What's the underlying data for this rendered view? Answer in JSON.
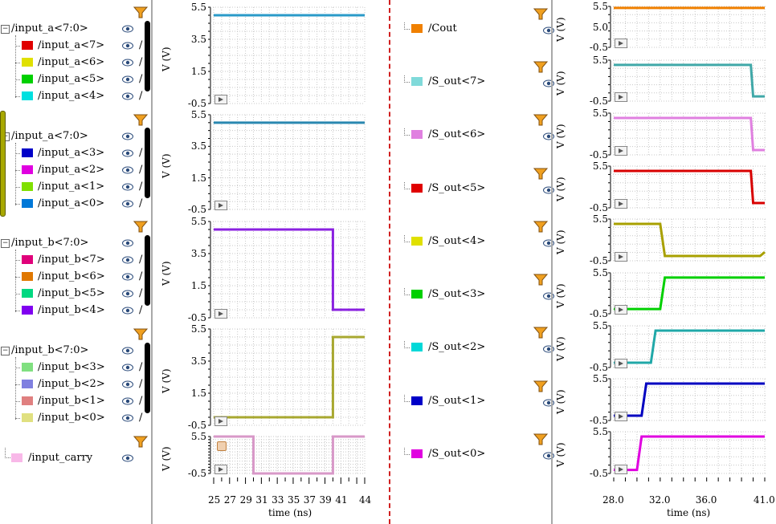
{
  "left_panel": {
    "groups": [
      {
        "bus": "/input_a<7:0>",
        "signals": [
          {
            "label": "/input_a<7>",
            "color": "#e00000"
          },
          {
            "label": "/input_a<6>",
            "color": "#e0e000"
          },
          {
            "label": "/input_a<5>",
            "color": "#00d000"
          },
          {
            "label": "/input_a<4>",
            "color": "#00e0e0"
          }
        ]
      },
      {
        "bus": "/input_a<7:0>",
        "signals": [
          {
            "label": "/input_a<3>",
            "color": "#0000c8"
          },
          {
            "label": "/input_a<2>",
            "color": "#e000e0"
          },
          {
            "label": "/input_a<1>",
            "color": "#80e000"
          },
          {
            "label": "/input_a<0>",
            "color": "#0078d8"
          }
        ]
      },
      {
        "bus": "/input_b<7:0>",
        "signals": [
          {
            "label": "/input_b<7>",
            "color": "#e0007a"
          },
          {
            "label": "/input_b<6>",
            "color": "#e07800"
          },
          {
            "label": "/input_b<5>",
            "color": "#00d880"
          },
          {
            "label": "/input_b<4>",
            "color": "#8000f0"
          }
        ]
      },
      {
        "bus": "/input_b<7:0>",
        "signals": [
          {
            "label": "/input_b<3>",
            "color": "#80e080"
          },
          {
            "label": "/input_b<2>",
            "color": "#8080e0"
          },
          {
            "label": "/input_b<1>",
            "color": "#e08080"
          },
          {
            "label": "/input_b<0>",
            "color": "#e0e080"
          }
        ]
      }
    ],
    "carry": {
      "label": "/input_carry",
      "color": "#f8b8e8"
    },
    "slash": "/"
  },
  "left_plot": {
    "ylabel": "V (V)",
    "yticks": [
      "5.5",
      "3.5",
      "1.5",
      "-0.5"
    ],
    "carry_yticks": [
      "5.5",
      "-0.5"
    ],
    "xlabel": "time (ns)",
    "xticks": [
      "25",
      "27",
      "29",
      "31",
      "33",
      "35",
      "37",
      "39",
      "41",
      "44"
    ],
    "colors": {
      "trace1": "#2a9ac8",
      "trace2": "#2a88b0",
      "trace3": "#8a20e0",
      "trace4": "#a8a830",
      "trace5": "#d898c8"
    }
  },
  "right_panel": {
    "signals": [
      {
        "label": "/Cout",
        "color": "#f08000"
      },
      {
        "label": "/S_out<7>",
        "color": "#80dada"
      },
      {
        "label": "/S_out<6>",
        "color": "#e080e0"
      },
      {
        "label": "/S_out<5>",
        "color": "#e00000"
      },
      {
        "label": "/S_out<4>",
        "color": "#e0e000"
      },
      {
        "label": "/S_out<3>",
        "color": "#00d000"
      },
      {
        "label": "/S_out<2>",
        "color": "#00d8d8"
      },
      {
        "label": "/S_out<1>",
        "color": "#0000c8"
      },
      {
        "label": "/S_out<0>",
        "color": "#e000e0"
      }
    ]
  },
  "right_plot": {
    "ylabel": "V (V)",
    "yticks_top": [
      "5.5",
      "-0.5"
    ],
    "first_yticks": [
      "5.5",
      "5.0",
      "-0.5"
    ],
    "xlabel": "time (ns)",
    "xticks": [
      "28.0",
      "32.0",
      "36.0",
      "41.0"
    ],
    "colors": {
      "cout": "#f08000",
      "s7": "#40a8a8",
      "s6": "#e080e0",
      "s5": "#d80000",
      "s4": "#a8a000",
      "s3": "#00d000",
      "s2": "#20a8a8",
      "s1": "#0000c0",
      "s0": "#e000e0"
    }
  }
}
